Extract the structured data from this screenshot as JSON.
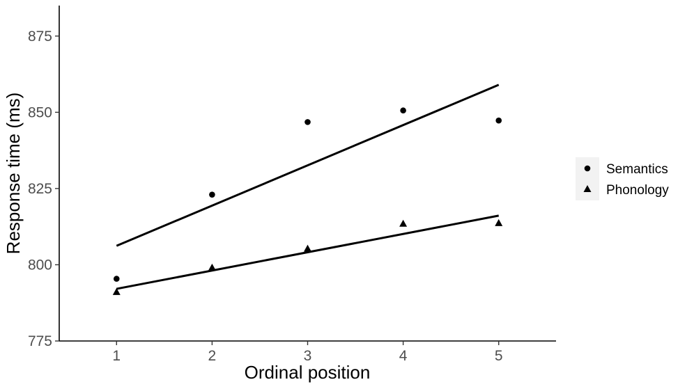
{
  "chart_data": {
    "type": "scatter",
    "title": "",
    "xlabel": "Ordinal position",
    "ylabel": "Response time (ms)",
    "xlim": [
      0.4,
      5.6
    ],
    "ylim": [
      775,
      885
    ],
    "x_ticks": [
      "1",
      "2",
      "3",
      "4",
      "5"
    ],
    "y_ticks": [
      "775",
      "800",
      "825",
      "850",
      "875"
    ],
    "grid": false,
    "legend_position": "right",
    "series": [
      {
        "name": "Semantics",
        "marker": "circle",
        "color": "#000000",
        "x": [
          1,
          2,
          3,
          4,
          5
        ],
        "y": [
          795.4,
          823.0,
          846.8,
          850.6,
          847.3
        ],
        "fit_line": {
          "x": [
            1,
            5
          ],
          "y": [
            806.2,
            859.0
          ]
        }
      },
      {
        "name": "Phonology",
        "marker": "triangle",
        "color": "#000000",
        "x": [
          1,
          2,
          3,
          4,
          5
        ],
        "y": [
          791.0,
          799.0,
          805.2,
          813.4,
          813.6
        ],
        "fit_line": {
          "x": [
            1,
            5
          ],
          "y": [
            792.1,
            816.1
          ]
        }
      }
    ]
  }
}
